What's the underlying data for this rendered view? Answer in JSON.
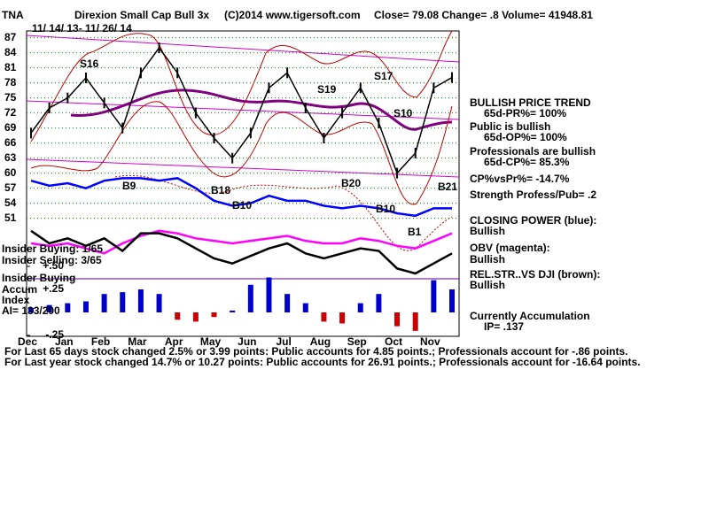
{
  "chart_data": {
    "type": "line",
    "ticker": "TNA",
    "title": "Direxion Small Cap Bull 3x",
    "source": "(C)2014 www.tigersoft.com",
    "quote": "Close=  79.08  Change= .8 Volume= 41948.81",
    "date_range": "11/ 14/ 13- 11/ 26/ 14",
    "categories": [
      "Dec",
      null,
      "Jan",
      null,
      "Feb",
      null,
      "Mar",
      null,
      "Apr",
      null,
      "May",
      null,
      "Jun",
      null,
      "Jul",
      null,
      "Aug",
      null,
      "Sep",
      null,
      "Oct",
      null,
      "Nov",
      null
    ],
    "series": [
      {
        "name": "price",
        "color": "#000000",
        "values": [
          68,
          73,
          75,
          79,
          74,
          69,
          80,
          85,
          80,
          72,
          67,
          63,
          68,
          77,
          80,
          73,
          67,
          72,
          77,
          70,
          60,
          64,
          77,
          79.08
        ]
      },
      {
        "name": "closing power",
        "color": "#0000ff",
        "values": [
          58.5,
          57.5,
          58,
          57,
          58.5,
          59,
          59,
          58.5,
          59,
          57,
          54.5,
          53.5,
          54,
          55.5,
          54.5,
          54.5,
          53.5,
          53,
          53.5,
          53,
          52,
          51.5,
          53,
          53
        ]
      },
      {
        "name": "obv",
        "color": "#ff00ff",
        "values": [
          46,
          45.5,
          46,
          45,
          44,
          46,
          47.5,
          48.5,
          48,
          47,
          46.5,
          46,
          46.5,
          47,
          47.5,
          46.5,
          46,
          46,
          47,
          46.5,
          45.5,
          45,
          46.5,
          48
        ]
      },
      {
        "name": "rel-str",
        "color": "#000000",
        "values": [
          48.5,
          46,
          47,
          45.5,
          47,
          44.5,
          48,
          48,
          47,
          45,
          43,
          42,
          43.5,
          45,
          46,
          44,
          43,
          44,
          45,
          44.5,
          41,
          40,
          42,
          44
        ]
      },
      {
        "name": "accumulation",
        "axis": "y2",
        "color": "#0000cc",
        "negative_color": "#cc0000",
        "values": [
          0.05,
          0.08,
          0.1,
          0.12,
          0.2,
          0.22,
          0.25,
          0.2,
          -0.08,
          -0.1,
          -0.05,
          0.02,
          0.3,
          0.38,
          0.2,
          0.1,
          -0.1,
          -0.12,
          0.1,
          0.2,
          -0.15,
          -0.2,
          0.35,
          0.25
        ]
      }
    ],
    "ylim": [
      28,
      88
    ],
    "yticks": [
      87,
      84,
      81,
      78,
      75,
      72,
      69,
      66,
      63,
      60,
      57,
      54,
      51
    ],
    "y2lim": [
      -0.25,
      0.5
    ],
    "y2ticks": [
      {
        "value": 0.5,
        "label": "+.50"
      },
      {
        "value": 0.25,
        "label": "+.25"
      },
      {
        "value": -0.25,
        "label": "-.25"
      }
    ],
    "grid": true,
    "annotations": [
      "S16",
      "B9",
      "B18",
      "B10",
      "S19",
      "B20",
      "S17",
      "S10",
      "B10",
      "B1",
      "B21"
    ],
    "left_labels": [
      "Insider Buying: 1/65",
      "Insider Selling: 3/65",
      "Insider Buying",
      "Accum",
      "Index",
      "AI= 133/200"
    ],
    "side_notes": [
      "BULLISH PRICE TREND",
      "65d-PR%= 100%",
      "Public is bullish",
      "65d-OP%= 100%",
      "Professionals are bullish",
      "65d-CP%= 85.3%",
      "CP%vsPr%= -14.7%",
      "Strength Profess/Pub= .2",
      "CLOSING POWER (blue):",
      "Bullish",
      "OBV (magenta):",
      "Bullish",
      "REL.STR..VS DJI (brown):",
      "Bullish",
      "Currently Accumulation",
      "IP=  .137"
    ],
    "footer": [
      "For Last 65 days stock changed  2.5% or  3.99 points:  Public accounts for  4.85 points.;  Professionals account for -.86 points.",
      "For Last year stock changed  14.7% or  10.27 points:  Public accounts for  26.91 points.;  Professionals account for -16.64 points."
    ]
  }
}
